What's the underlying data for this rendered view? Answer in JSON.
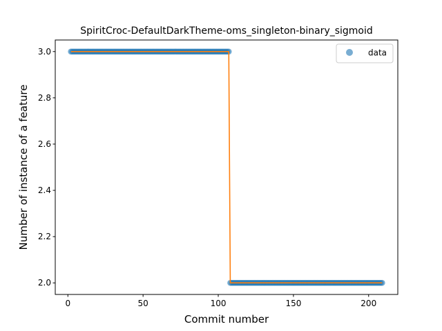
{
  "chart_data": {
    "type": "scatter",
    "title": "SpiritCroc-DefaultDarkTheme-oms_singleton-binary_sigmoid",
    "xlabel": "Commit number",
    "ylabel": "Number of instance of a feature",
    "xlim": [
      -8.4,
      219.4
    ],
    "ylim": [
      1.95,
      3.05
    ],
    "xticks": [
      0,
      50,
      100,
      150,
      200
    ],
    "xtick_labels": [
      "0",
      "50",
      "100",
      "150",
      "200"
    ],
    "yticks": [
      2.0,
      2.2,
      2.4,
      2.6,
      2.8,
      3.0
    ],
    "ytick_labels": [
      "2.0",
      "2.2",
      "2.4",
      "2.6",
      "2.8",
      "3.0"
    ],
    "grid": false,
    "legend": {
      "position": "top-right",
      "entries": [
        "data"
      ]
    },
    "colors": {
      "points": "#1f77b4",
      "fit": "#ff7f0e"
    },
    "series": [
      {
        "name": "data",
        "kind": "points",
        "segments": [
          {
            "x_start": 2,
            "x_end": 107,
            "y": 3.0
          },
          {
            "x_start": 108,
            "x_end": 209,
            "y": 2.0
          }
        ]
      },
      {
        "kind": "line",
        "x": [
          2,
          107,
          108,
          209
        ],
        "y": [
          3.0,
          3.0,
          2.0,
          2.0
        ]
      }
    ]
  }
}
